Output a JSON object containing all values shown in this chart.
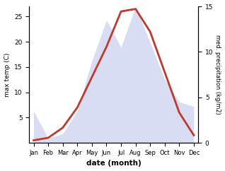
{
  "months": [
    "Jan",
    "Feb",
    "Mar",
    "Apr",
    "May",
    "Jun",
    "Jul",
    "Aug",
    "Sep",
    "Oct",
    "Nov",
    "Dec"
  ],
  "temperature": [
    0.5,
    1.0,
    3.0,
    7.0,
    13.0,
    19.0,
    26.0,
    26.5,
    22.0,
    14.0,
    6.0,
    1.5
  ],
  "precipitation_right": [
    3.5,
    0.5,
    1.0,
    3.5,
    9.0,
    13.5,
    10.5,
    15.0,
    11.0,
    7.0,
    4.5,
    4.0
  ],
  "temp_color": "#c0392b",
  "precip_color": "#aab4e8",
  "left_ylim": [
    0,
    27
  ],
  "right_ylim": [
    0,
    15
  ],
  "left_yticks": [
    5,
    10,
    15,
    20,
    25
  ],
  "right_yticks": [
    0,
    5,
    10,
    15
  ],
  "ylabel_left": "max temp (C)",
  "ylabel_right": "med. precipitation (kg/m2)",
  "xlabel": "date (month)",
  "bg_color": "#ffffff",
  "temp_linewidth": 2.0,
  "precip_alpha": 0.45,
  "scale_factor": 1.8
}
